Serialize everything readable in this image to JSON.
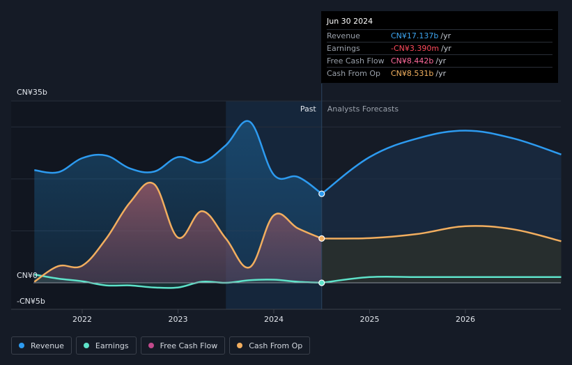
{
  "tooltip": {
    "date": "Jun 30 2024",
    "rows": [
      {
        "label": "Revenue",
        "value": "CN¥17.137b",
        "unit": "/yr",
        "color": "#3ea6f1"
      },
      {
        "label": "Earnings",
        "value": "-CN¥3.390m",
        "unit": "/yr",
        "color": "#ff4b5c"
      },
      {
        "label": "Free Cash Flow",
        "value": "CN¥8.442b",
        "unit": "/yr",
        "color": "#ff6b9d"
      },
      {
        "label": "Cash From Op",
        "value": "CN¥8.531b",
        "unit": "/yr",
        "color": "#f4b260"
      }
    ]
  },
  "legend": [
    {
      "label": "Revenue",
      "color": "#2d9bf0"
    },
    {
      "label": "Earnings",
      "color": "#5ee2c9"
    },
    {
      "label": "Free Cash Flow",
      "color": "#c24a8c"
    },
    {
      "label": "Cash From Op",
      "color": "#f2ae5f"
    }
  ],
  "chart_data": {
    "type": "line",
    "y_unit": "CN¥ billions",
    "ylim": [
      -5,
      35
    ],
    "xlim": [
      2021.25,
      2027.0
    ],
    "y_tick_labels": [
      {
        "value": 35,
        "label": "CN¥35b"
      },
      {
        "value": 0,
        "label": "CN¥0"
      },
      {
        "value": -5,
        "label": "-CN¥5b"
      }
    ],
    "x_tick_labels": [
      {
        "value": 2022,
        "label": "2022"
      },
      {
        "value": 2023,
        "label": "2023"
      },
      {
        "value": 2024,
        "label": "2024"
      },
      {
        "value": 2025,
        "label": "2025"
      },
      {
        "value": 2026,
        "label": "2026"
      }
    ],
    "past_label": "Past",
    "forecast_label": "Analysts Forecasts",
    "divider_x": 2024.5,
    "highlight_start_x": 2023.5,
    "series": [
      {
        "name": "Revenue",
        "color": "#2d9bf0",
        "past": [
          [
            2021.5,
            21.7
          ],
          [
            2021.75,
            21.3
          ],
          [
            2022.0,
            24.0
          ],
          [
            2022.25,
            24.5
          ],
          [
            2022.5,
            22.0
          ],
          [
            2022.75,
            21.4
          ],
          [
            2023.0,
            24.2
          ],
          [
            2023.25,
            23.2
          ],
          [
            2023.5,
            26.5
          ],
          [
            2023.75,
            31.0
          ],
          [
            2024.0,
            20.8
          ],
          [
            2024.25,
            20.4
          ],
          [
            2024.5,
            17.137
          ]
        ],
        "forecast": [
          [
            2024.5,
            17.137
          ],
          [
            2025.0,
            24.2
          ],
          [
            2025.5,
            27.8
          ],
          [
            2026.0,
            29.3
          ],
          [
            2026.5,
            27.8
          ],
          [
            2027.0,
            24.7
          ]
        ]
      },
      {
        "name": "Cash From Op",
        "color": "#f2ae5f",
        "past": [
          [
            2021.5,
            0.2
          ],
          [
            2021.75,
            3.2
          ],
          [
            2022.0,
            3.3
          ],
          [
            2022.25,
            8.5
          ],
          [
            2022.5,
            15.5
          ],
          [
            2022.75,
            19.0
          ],
          [
            2023.0,
            8.7
          ],
          [
            2023.25,
            13.8
          ],
          [
            2023.5,
            8.5
          ],
          [
            2023.75,
            3.0
          ],
          [
            2024.0,
            13.0
          ],
          [
            2024.25,
            10.5
          ],
          [
            2024.5,
            8.531
          ]
        ],
        "forecast": [
          [
            2024.5,
            8.531
          ],
          [
            2025.0,
            8.6
          ],
          [
            2025.5,
            9.4
          ],
          [
            2026.0,
            10.9
          ],
          [
            2026.5,
            10.3
          ],
          [
            2027.0,
            8.0
          ]
        ]
      },
      {
        "name": "Free Cash Flow",
        "color": "#c24a8c",
        "past": [
          [
            2021.5,
            0.2
          ],
          [
            2021.75,
            3.2
          ],
          [
            2022.0,
            3.3
          ],
          [
            2022.25,
            8.5
          ],
          [
            2022.5,
            15.5
          ],
          [
            2022.75,
            19.0
          ],
          [
            2023.0,
            8.7
          ],
          [
            2023.25,
            13.8
          ],
          [
            2023.5,
            8.5
          ],
          [
            2023.75,
            3.0
          ],
          [
            2024.0,
            13.0
          ],
          [
            2024.25,
            10.5
          ],
          [
            2024.5,
            8.442
          ]
        ],
        "forecast": []
      },
      {
        "name": "Earnings",
        "color": "#5ee2c9",
        "past": [
          [
            2021.5,
            1.6
          ],
          [
            2021.75,
            0.8
          ],
          [
            2022.0,
            0.3
          ],
          [
            2022.25,
            -0.5
          ],
          [
            2022.5,
            -0.5
          ],
          [
            2022.75,
            -0.9
          ],
          [
            2023.0,
            -0.9
          ],
          [
            2023.25,
            0.2
          ],
          [
            2023.5,
            0.0
          ],
          [
            2023.75,
            0.5
          ],
          [
            2024.0,
            0.6
          ],
          [
            2024.25,
            0.2
          ],
          [
            2024.5,
            -0.00339
          ]
        ],
        "forecast": [
          [
            2024.5,
            -0.00339
          ],
          [
            2025.0,
            1.1
          ],
          [
            2025.5,
            1.1
          ],
          [
            2026.0,
            1.1
          ],
          [
            2026.5,
            1.1
          ],
          [
            2027.0,
            1.1
          ]
        ]
      }
    ]
  }
}
